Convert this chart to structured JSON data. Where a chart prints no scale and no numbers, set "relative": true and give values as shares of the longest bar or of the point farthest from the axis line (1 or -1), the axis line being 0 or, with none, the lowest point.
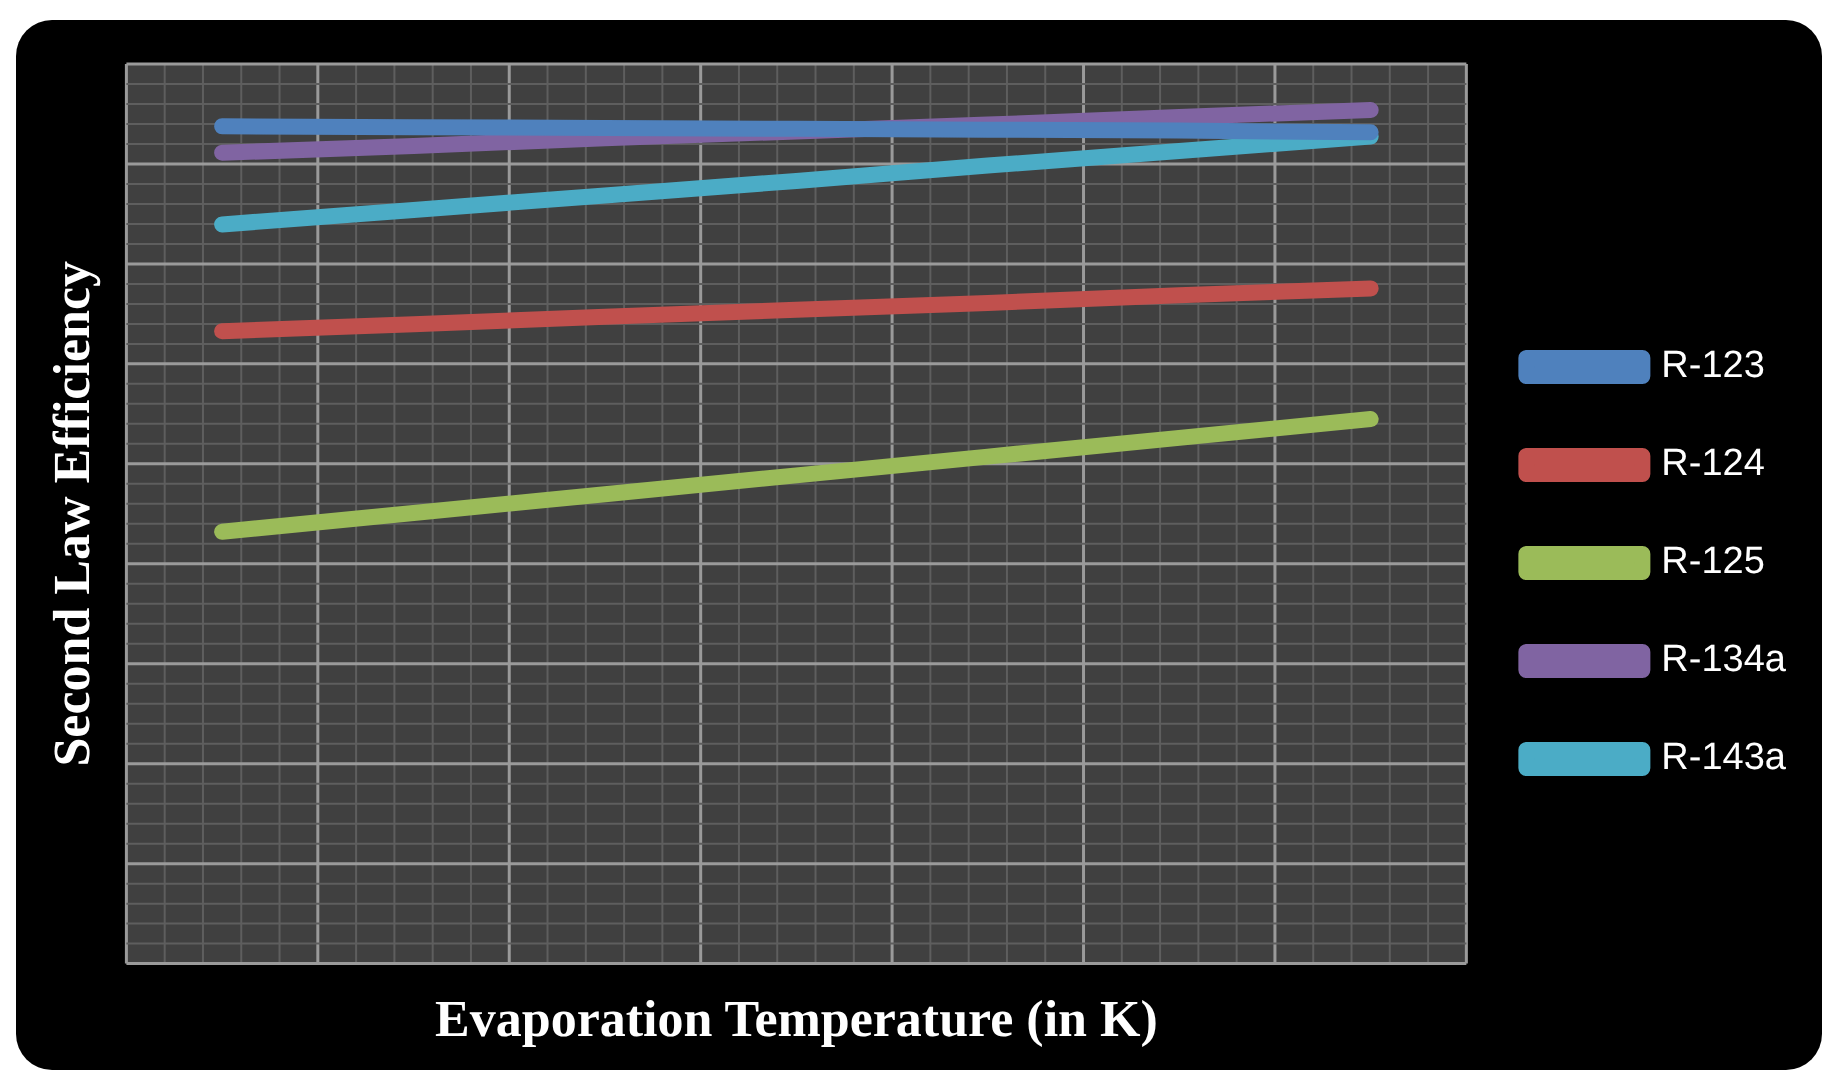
{
  "chart_data": {
    "type": "line",
    "xlabel": "Evaporation Temperature (in K)",
    "ylabel": "Second Law Efficiency",
    "relative": true,
    "grid": true,
    "legend": "right",
    "marker": "none",
    "line_style": "solid",
    "categories": [
      null,
      null,
      null,
      null,
      null,
      null,
      null
    ],
    "series": [
      {
        "name": "R-123",
        "color": "#4f81bd",
        "values": [
          0.981,
          0.98,
          0.979,
          0.978,
          0.977,
          0.976,
          0.974
        ]
      },
      {
        "name": "R-124",
        "color": "#c0504d",
        "values": [
          0.741,
          0.749,
          0.758,
          0.766,
          0.774,
          0.783,
          0.791
        ]
      },
      {
        "name": "R-125",
        "color": "#9bbb59",
        "values": [
          0.506,
          0.528,
          0.55,
          0.572,
          0.594,
          0.616,
          0.638
        ]
      },
      {
        "name": "R-134a",
        "color": "#8064a2",
        "values": [
          0.95,
          0.958,
          0.967,
          0.975,
          0.983,
          0.992,
          1.0
        ]
      },
      {
        "name": "R-143a",
        "color": "#4bacc6",
        "values": [
          0.866,
          0.883,
          0.9,
          0.917,
          0.935,
          0.952,
          0.969
        ]
      }
    ]
  }
}
